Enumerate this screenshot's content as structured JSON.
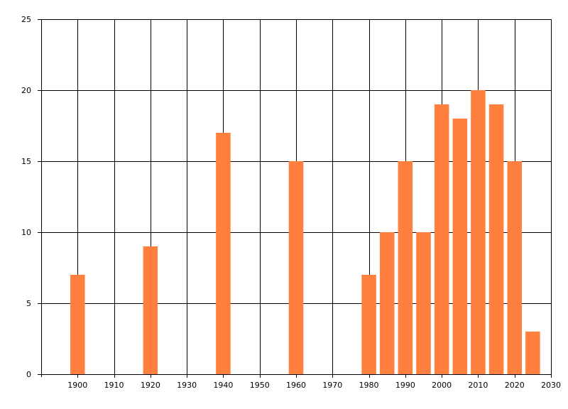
{
  "chart_data": {
    "type": "bar",
    "x": [
      1900,
      1920,
      1940,
      1960,
      1980,
      1985,
      1990,
      1995,
      2000,
      2005,
      2010,
      2015,
      2020,
      2025
    ],
    "values": [
      7,
      9,
      17,
      15,
      7,
      10,
      15,
      10,
      19,
      18,
      20,
      19,
      15,
      3
    ],
    "bar_width": 4,
    "xlim": [
      1890,
      2030
    ],
    "ylim": [
      0,
      25
    ],
    "x_ticks": [
      1900,
      1910,
      1920,
      1930,
      1940,
      1950,
      1960,
      1970,
      1980,
      1990,
      2000,
      2010,
      2020,
      2030
    ],
    "y_ticks": [
      0,
      5,
      10,
      15,
      20,
      25
    ],
    "grid": true,
    "legend": "none",
    "bar_color": "#FF7F3F"
  }
}
